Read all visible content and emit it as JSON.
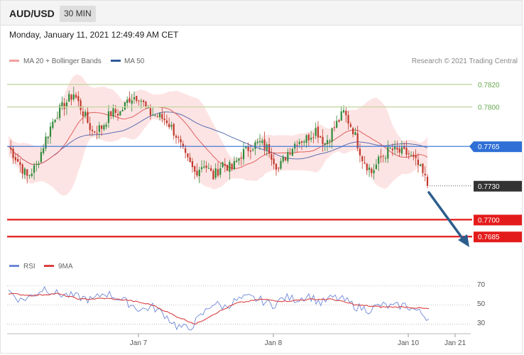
{
  "header": {
    "symbol": "AUD/USD",
    "interval": "30 MIN",
    "datetime": "Monday, January 11, 2021 12:49:49 AM CET",
    "copyright": "Research © 2021 Trading Central"
  },
  "colors": {
    "bollinger": "#f4a0a0",
    "band_fill": "#fde4e4",
    "ma50": "#5a6fb0",
    "ma20": "#e06060",
    "up_candle": "#2e8b3a",
    "down_candle": "#c0392b",
    "level_blue": "#2f6fd6",
    "level_red": "#e31b1b",
    "level_dark": "#333333",
    "level_green_line": "#c9d8a7",
    "rsi": "#6d88d8",
    "rsi_ma": "#d94141",
    "arrow": "#2c5d8c"
  },
  "chart_data": [
    {
      "type": "line",
      "name": "price-chart",
      "legend": [
        {
          "label": "MA 20 + Bollinger Bands",
          "color": "#f4a0a0"
        },
        {
          "label": "MA 50",
          "color": "#2f5b9a"
        }
      ],
      "ylim": [
        0.7665,
        0.7835
      ],
      "x_ticks": [
        "Jan 7",
        "Jan 8",
        "Jan 10",
        "Jan 21"
      ],
      "levels": [
        {
          "value": 0.782,
          "label": "0.7820",
          "style": "resistance-green"
        },
        {
          "value": 0.78,
          "label": "0.7800",
          "style": "resistance-green"
        },
        {
          "value": 0.7765,
          "label": "0.7765",
          "style": "pivot-blue"
        },
        {
          "value": 0.773,
          "label": "0.7730",
          "style": "last-price"
        },
        {
          "value": 0.77,
          "label": "0.7700",
          "style": "support-red"
        },
        {
          "value": 0.7685,
          "label": "0.7685",
          "style": "support-red"
        }
      ],
      "anchors": [
        [
          0,
          0.7765
        ],
        [
          4,
          0.7752
        ],
        [
          8,
          0.7738
        ],
        [
          12,
          0.7748
        ],
        [
          16,
          0.7772
        ],
        [
          20,
          0.7792
        ],
        [
          24,
          0.7802
        ],
        [
          28,
          0.7812
        ],
        [
          32,
          0.7795
        ],
        [
          36,
          0.7778
        ],
        [
          40,
          0.7782
        ],
        [
          44,
          0.7795
        ],
        [
          48,
          0.7795
        ],
        [
          52,
          0.7808
        ],
        [
          56,
          0.781
        ],
        [
          60,
          0.7795
        ],
        [
          64,
          0.7792
        ],
        [
          68,
          0.7788
        ],
        [
          72,
          0.7775
        ],
        [
          76,
          0.7755
        ],
        [
          80,
          0.7742
        ],
        [
          84,
          0.775
        ],
        [
          88,
          0.7738
        ],
        [
          92,
          0.775
        ],
        [
          96,
          0.7745
        ],
        [
          100,
          0.7758
        ],
        [
          104,
          0.7765
        ],
        [
          108,
          0.7768
        ],
        [
          112,
          0.7762
        ],
        [
          116,
          0.7745
        ],
        [
          120,
          0.776
        ],
        [
          124,
          0.777
        ],
        [
          128,
          0.7772
        ],
        [
          132,
          0.778
        ],
        [
          136,
          0.7768
        ],
        [
          140,
          0.7782
        ],
        [
          144,
          0.7795
        ],
        [
          148,
          0.778
        ],
        [
          152,
          0.7755
        ],
        [
          156,
          0.7742
        ],
        [
          160,
          0.7755
        ],
        [
          164,
          0.7762
        ],
        [
          168,
          0.776
        ],
        [
          172,
          0.7758
        ],
        [
          176,
          0.7748
        ],
        [
          180,
          0.7732
        ]
      ],
      "last_price": 0.773
    },
    {
      "type": "line",
      "name": "rsi-chart",
      "legend": [
        {
          "label": "RSI",
          "color": "#6d88d8"
        },
        {
          "label": "9MA",
          "color": "#d94141"
        }
      ],
      "ylim": [
        20,
        78
      ],
      "y_ticks": [
        "70",
        "50",
        "30"
      ],
      "rsi_anchors": [
        [
          0,
          65
        ],
        [
          5,
          55
        ],
        [
          10,
          60
        ],
        [
          15,
          68
        ],
        [
          20,
          62
        ],
        [
          25,
          60
        ],
        [
          30,
          58
        ],
        [
          35,
          55
        ],
        [
          40,
          63
        ],
        [
          45,
          58
        ],
        [
          50,
          52
        ],
        [
          55,
          45
        ],
        [
          60,
          48
        ],
        [
          65,
          40
        ],
        [
          70,
          28
        ],
        [
          75,
          25
        ],
        [
          80,
          38
        ],
        [
          85,
          52
        ],
        [
          90,
          48
        ],
        [
          95,
          55
        ],
        [
          100,
          58
        ],
        [
          105,
          55
        ],
        [
          110,
          50
        ],
        [
          115,
          58
        ],
        [
          120,
          56
        ],
        [
          125,
          60
        ],
        [
          130,
          52
        ],
        [
          135,
          58
        ],
        [
          140,
          55
        ],
        [
          145,
          48
        ],
        [
          150,
          45
        ],
        [
          155,
          50
        ],
        [
          160,
          48
        ],
        [
          165,
          50
        ],
        [
          170,
          44
        ],
        [
          175,
          36
        ]
      ],
      "ma_anchors": [
        [
          0,
          62
        ],
        [
          10,
          60
        ],
        [
          20,
          62
        ],
        [
          30,
          56
        ],
        [
          40,
          57
        ],
        [
          50,
          55
        ],
        [
          60,
          50
        ],
        [
          70,
          38
        ],
        [
          78,
          30
        ],
        [
          85,
          40
        ],
        [
          95,
          52
        ],
        [
          105,
          56
        ],
        [
          115,
          54
        ],
        [
          125,
          56
        ],
        [
          135,
          56
        ],
        [
          145,
          50
        ],
        [
          155,
          48
        ],
        [
          165,
          48
        ],
        [
          175,
          46
        ]
      ]
    }
  ]
}
